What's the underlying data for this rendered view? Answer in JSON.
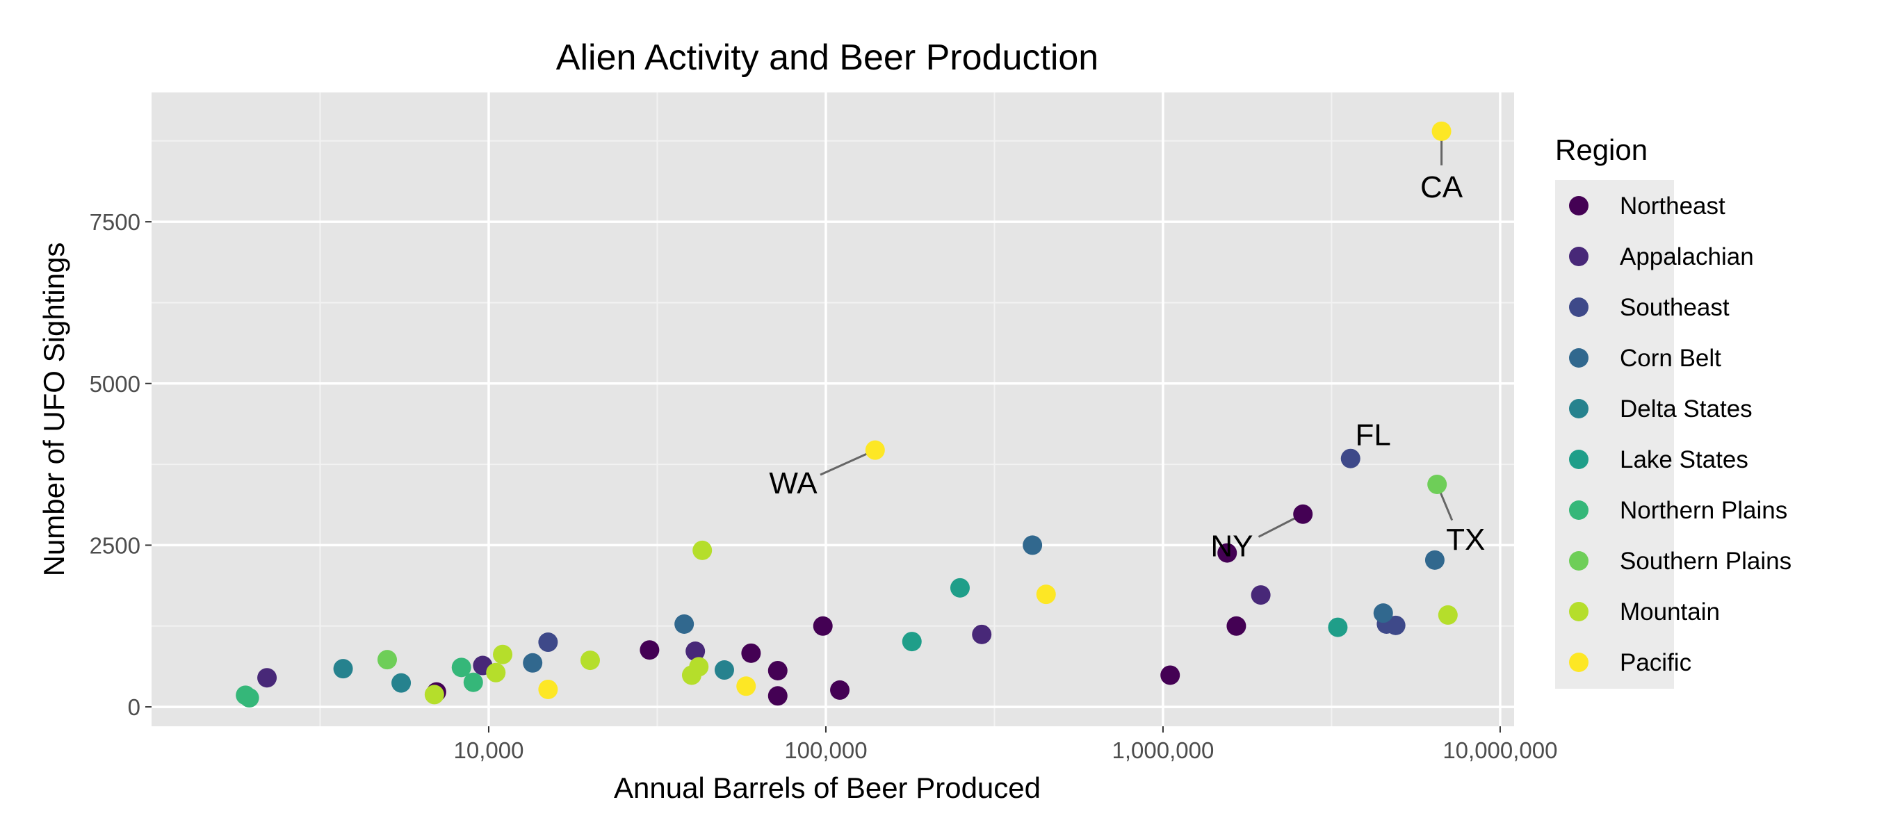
{
  "chart_data": {
    "type": "scatter",
    "title": "Alien Activity and Beer Production",
    "xlabel": "Annual Barrels of Beer Produced",
    "ylabel": "Number of UFO Sightings",
    "x_scale": "log10",
    "xlim": [
      1000,
      11000000
    ],
    "ylim": [
      -300,
      9500
    ],
    "x_ticks": [
      10000,
      100000,
      1000000,
      10000000
    ],
    "x_tick_labels": [
      "10,000",
      "100,000",
      "1,000,000",
      "10,000,000"
    ],
    "y_ticks": [
      0,
      2500,
      5000,
      7500
    ],
    "y_tick_labels": [
      "0",
      "2500",
      "5000",
      "7500"
    ],
    "grid": true,
    "background": "#e5e5e5",
    "legend_title": "Region",
    "legend_position": "right",
    "regions": [
      {
        "name": "Northeast",
        "color": "#440154"
      },
      {
        "name": "Appalachian",
        "color": "#482878"
      },
      {
        "name": "Southeast",
        "color": "#3e4989"
      },
      {
        "name": "Corn Belt",
        "color": "#31688e"
      },
      {
        "name": "Delta States",
        "color": "#26828e"
      },
      {
        "name": "Lake States",
        "color": "#1f9e89"
      },
      {
        "name": "Northern Plains",
        "color": "#35b779"
      },
      {
        "name": "Southern Plains",
        "color": "#6ece58"
      },
      {
        "name": "Mountain",
        "color": "#b5de2b"
      },
      {
        "name": "Pacific",
        "color": "#fde725"
      }
    ],
    "points": [
      {
        "region": "Northeast",
        "x": 7000,
        "y": 230
      },
      {
        "region": "Northeast",
        "x": 30000,
        "y": 880
      },
      {
        "region": "Northeast",
        "x": 60000,
        "y": 830
      },
      {
        "region": "Northeast",
        "x": 72000,
        "y": 560
      },
      {
        "region": "Northeast",
        "x": 72000,
        "y": 170
      },
      {
        "region": "Northeast",
        "x": 98000,
        "y": 1250
      },
      {
        "region": "Northeast",
        "x": 110000,
        "y": 260
      },
      {
        "region": "Northeast",
        "x": 1050000,
        "y": 490
      },
      {
        "region": "Northeast",
        "x": 1550000,
        "y": 2380
      },
      {
        "region": "Northeast",
        "x": 1650000,
        "y": 1250
      },
      {
        "region": "Northeast",
        "x": 2600000,
        "y": 2980
      },
      {
        "region": "Appalachian",
        "x": 2200,
        "y": 450
      },
      {
        "region": "Appalachian",
        "x": 9600,
        "y": 640
      },
      {
        "region": "Appalachian",
        "x": 41000,
        "y": 860
      },
      {
        "region": "Appalachian",
        "x": 290000,
        "y": 1120
      },
      {
        "region": "Appalachian",
        "x": 1950000,
        "y": 1730
      },
      {
        "region": "Southeast",
        "x": 15000,
        "y": 1000
      },
      {
        "region": "Southeast",
        "x": 3600000,
        "y": 3840
      },
      {
        "region": "Southeast",
        "x": 4600000,
        "y": 1280
      },
      {
        "region": "Southeast",
        "x": 4900000,
        "y": 1260
      },
      {
        "region": "Corn Belt",
        "x": 13500,
        "y": 680
      },
      {
        "region": "Corn Belt",
        "x": 38000,
        "y": 1280
      },
      {
        "region": "Corn Belt",
        "x": 410000,
        "y": 2500
      },
      {
        "region": "Corn Belt",
        "x": 4500000,
        "y": 1450
      },
      {
        "region": "Corn Belt",
        "x": 6400000,
        "y": 2270
      },
      {
        "region": "Delta States",
        "x": 3700,
        "y": 590
      },
      {
        "region": "Delta States",
        "x": 5500,
        "y": 370
      },
      {
        "region": "Delta States",
        "x": 50000,
        "y": 570
      },
      {
        "region": "Lake States",
        "x": 180000,
        "y": 1010
      },
      {
        "region": "Lake States",
        "x": 250000,
        "y": 1840
      },
      {
        "region": "Lake States",
        "x": 3300000,
        "y": 1230
      },
      {
        "region": "Northern Plains",
        "x": 1900,
        "y": 180
      },
      {
        "region": "Northern Plains",
        "x": 1950,
        "y": 140
      },
      {
        "region": "Northern Plains",
        "x": 8300,
        "y": 610
      },
      {
        "region": "Northern Plains",
        "x": 9000,
        "y": 380
      },
      {
        "region": "Southern Plains",
        "x": 5000,
        "y": 730
      },
      {
        "region": "Southern Plains",
        "x": 6500000,
        "y": 3440
      },
      {
        "region": "Mountain",
        "x": 6900,
        "y": 190
      },
      {
        "region": "Mountain",
        "x": 10500,
        "y": 530
      },
      {
        "region": "Mountain",
        "x": 11000,
        "y": 810
      },
      {
        "region": "Mountain",
        "x": 20000,
        "y": 720
      },
      {
        "region": "Mountain",
        "x": 40000,
        "y": 490
      },
      {
        "region": "Mountain",
        "x": 42000,
        "y": 620
      },
      {
        "region": "Mountain",
        "x": 43000,
        "y": 2420
      },
      {
        "region": "Mountain",
        "x": 7000000,
        "y": 1420
      },
      {
        "region": "Pacific",
        "x": 15000,
        "y": 270
      },
      {
        "region": "Pacific",
        "x": 58000,
        "y": 320
      },
      {
        "region": "Pacific",
        "x": 140000,
        "y": 3970
      },
      {
        "region": "Pacific",
        "x": 450000,
        "y": 1740
      },
      {
        "region": "Pacific",
        "x": 6700000,
        "y": 8900
      }
    ],
    "annotations": [
      {
        "label": "CA",
        "x": 6700000,
        "y": 8900,
        "label_x": 6700000,
        "label_y": 8050
      },
      {
        "label": "WA",
        "x": 140000,
        "y": 3970,
        "label_x": 80000,
        "label_y": 3470
      },
      {
        "label": "FL",
        "x": 3600000,
        "y": 3840,
        "label_x": 4200000,
        "label_y": 4220
      },
      {
        "label": "NY",
        "x": 2600000,
        "y": 2980,
        "label_x": 1600000,
        "label_y": 2500
      },
      {
        "label": "TX",
        "x": 6500000,
        "y": 3440,
        "label_x": 7900000,
        "label_y": 2600
      }
    ]
  }
}
